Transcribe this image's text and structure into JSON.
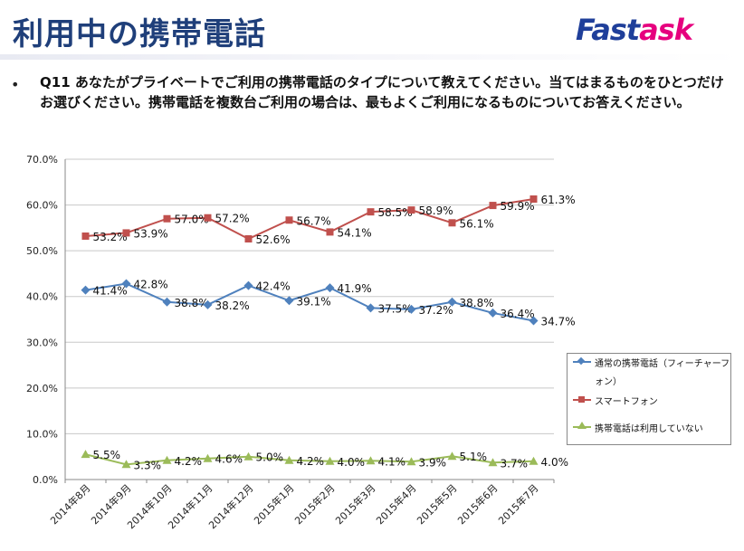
{
  "header": {
    "title": "利用中の携帯電話",
    "logo_fast": "Fast",
    "logo_ask": "ask"
  },
  "question": {
    "bullet": "•",
    "text": "Q11 あなたがプライベートでご利用の携帯電話のタイプについて教えてください。当てはまるものをひとつだけお選びください。携帯電話を複数台ご利用の場合は、最もよくご利用になるものについてお答えください。"
  },
  "chart_data": {
    "type": "line",
    "categories": [
      "2014年8月",
      "2014年9月",
      "2014年10月",
      "2014年11月",
      "2014年12月",
      "2015年1月",
      "2015年2月",
      "2015年3月",
      "2015年4月",
      "2015年5月",
      "2015年6月",
      "2015年7月"
    ],
    "series": [
      {
        "name": "通常の携帯電話（フィーチャーフォン）",
        "color": "#4f81bd",
        "marker": "diamond",
        "values": [
          41.4,
          42.8,
          38.8,
          38.2,
          42.4,
          39.1,
          41.9,
          37.5,
          37.2,
          38.8,
          36.4,
          34.7
        ],
        "labels": [
          "41.4%",
          "42.8%",
          "38.8%",
          "38.2%",
          "42.4%",
          "39.1%",
          "41.9%",
          "37.5%",
          "37.2%",
          "38.8%",
          "36.4%",
          "34.7%"
        ]
      },
      {
        "name": "スマートフォン",
        "color": "#c0504d",
        "marker": "square",
        "values": [
          53.2,
          53.9,
          57.0,
          57.2,
          52.6,
          56.7,
          54.1,
          58.5,
          58.9,
          56.1,
          59.9,
          61.3
        ],
        "labels": [
          "53.2%",
          "53.9%",
          "57.0%",
          "57.2%",
          "52.6%",
          "56.7%",
          "54.1%",
          "58.5%",
          "58.9%",
          "56.1%",
          "59.9%",
          "61.3%"
        ]
      },
      {
        "name": "携帯電話は利用していない",
        "color": "#9bbb59",
        "marker": "triangle",
        "values": [
          5.5,
          3.3,
          4.2,
          4.6,
          5.0,
          4.2,
          4.0,
          4.1,
          3.9,
          5.1,
          3.7,
          4.0
        ],
        "labels": [
          "5.5%",
          "3.3%",
          "4.2%",
          "4.6%",
          "5.0%",
          "4.2%",
          "4.0%",
          "4.1%",
          "3.9%",
          "5.1%",
          "3.7%",
          "4.0%"
        ]
      }
    ],
    "ylim": [
      0,
      70
    ],
    "yticks": [
      "0.0%",
      "10.0%",
      "20.0%",
      "30.0%",
      "40.0%",
      "50.0%",
      "60.0%",
      "70.0%"
    ],
    "grid": true,
    "legend_position": "right"
  }
}
